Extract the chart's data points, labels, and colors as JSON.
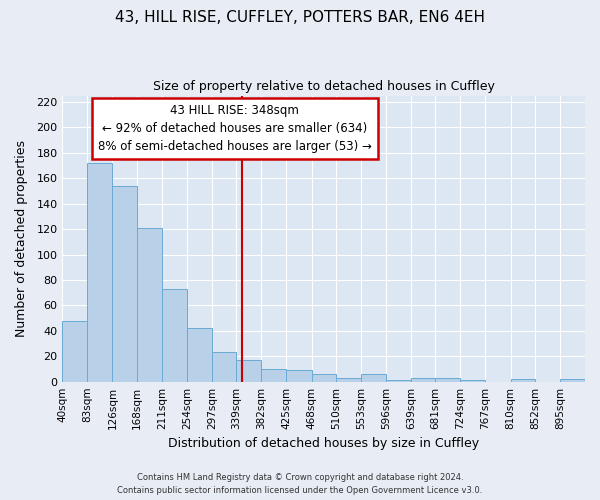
{
  "title": "43, HILL RISE, CUFFLEY, POTTERS BAR, EN6 4EH",
  "subtitle": "Size of property relative to detached houses in Cuffley",
  "xlabel": "Distribution of detached houses by size in Cuffley",
  "ylabel": "Number of detached properties",
  "bin_labels": [
    "40sqm",
    "83sqm",
    "126sqm",
    "168sqm",
    "211sqm",
    "254sqm",
    "297sqm",
    "339sqm",
    "382sqm",
    "425sqm",
    "468sqm",
    "510sqm",
    "553sqm",
    "596sqm",
    "639sqm",
    "681sqm",
    "724sqm",
    "767sqm",
    "810sqm",
    "852sqm",
    "895sqm"
  ],
  "bin_edges": [
    40,
    83,
    126,
    168,
    211,
    254,
    297,
    339,
    382,
    425,
    468,
    510,
    553,
    596,
    639,
    681,
    724,
    767,
    810,
    852,
    895,
    938
  ],
  "bar_values": [
    48,
    172,
    154,
    121,
    73,
    42,
    23,
    17,
    10,
    9,
    6,
    3,
    6,
    1,
    3,
    3,
    1,
    0,
    2,
    0,
    2
  ],
  "bar_color": "#b8d0e8",
  "bar_edge_color": "#6aaad4",
  "marker_value": 348,
  "marker_color": "#cc0000",
  "ylim": [
    0,
    225
  ],
  "yticks": [
    0,
    20,
    40,
    60,
    80,
    100,
    120,
    140,
    160,
    180,
    200,
    220
  ],
  "annotation_title": "43 HILL RISE: 348sqm",
  "annotation_line1": "← 92% of detached houses are smaller (634)",
  "annotation_line2": "8% of semi-detached houses are larger (53) →",
  "annotation_box_facecolor": "#ffffff",
  "annotation_box_edgecolor": "#cc0000",
  "footer_line1": "Contains HM Land Registry data © Crown copyright and database right 2024.",
  "footer_line2": "Contains public sector information licensed under the Open Government Licence v3.0.",
  "fig_bg_color": "#e8edf5",
  "plot_bg_color": "#dce7f3"
}
